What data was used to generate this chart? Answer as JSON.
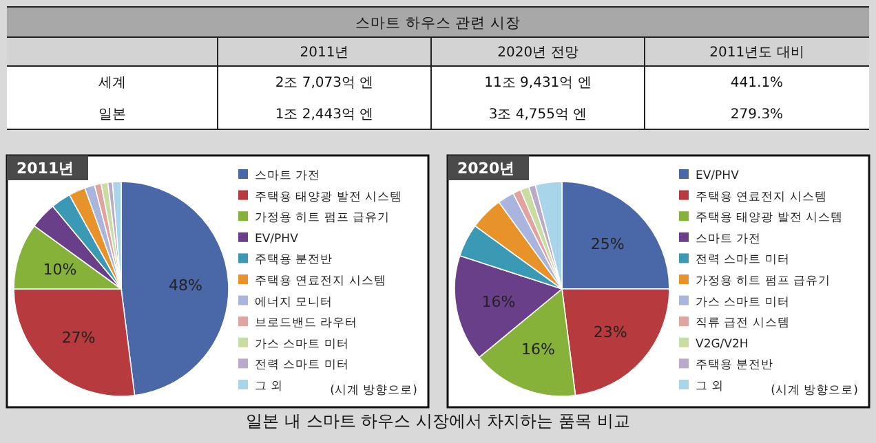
{
  "chart_data": [
    {
      "type": "other",
      "title": "스마트 하우스 관련 시장",
      "categories": [
        "2011년",
        "2020년 전망",
        "2011년도 대비"
      ],
      "y_categories": [
        "세계",
        "일본"
      ],
      "cell_labels": [
        [
          "2조 7,073억 엔",
          "11조 9,431억 엔",
          "441.1%"
        ],
        [
          "1조 2,443억 엔",
          "3조 4,755억 엔",
          "279.3%"
        ]
      ],
      "annotations": [
        "일본 내 스마트 하우스 시장에서 차지하는 품목 비교"
      ]
    },
    {
      "type": "pie",
      "title": "2011년",
      "legend": "right",
      "annotations": [
        "(시계 방향으로)"
      ],
      "categories": [
        "스마트 가전",
        "주택용 태양광 발전 시스템",
        "가정용 히트 펌프 급유기",
        "EV/PHV",
        "주택용 분전반",
        "주택용 연료전지 시스템",
        "에너지 모니터",
        "브로드밴드 라우터",
        "가스 스마트 미터",
        "전력 스마트 미터",
        "그 외"
      ],
      "values": [
        48,
        27,
        10,
        4,
        3,
        2.5,
        1.5,
        1,
        1,
        0.7,
        1.3
      ],
      "value_labels": [
        "48%",
        "27%",
        "10%",
        null,
        null,
        null,
        null,
        null,
        null,
        null,
        null
      ],
      "colors": [
        "#4a68a8",
        "#b63a3e",
        "#86b23a",
        "#683f88",
        "#3a9ab6",
        "#e8922a",
        "#a9b5dc",
        "#e2a2a0",
        "#c9dda0",
        "#b9a9cd",
        "#a9d5ea"
      ]
    },
    {
      "type": "pie",
      "title": "2020년",
      "legend": "right",
      "annotations": [
        "(시계 방향으로)"
      ],
      "categories": [
        "EV/PHV",
        "주택용 연료전지 시스템",
        "주택용 태양광 발전 시스템",
        "스마트 가전",
        "전력 스마트 미터",
        "가정용 히트 펌프 급유기",
        "가스 스마트 미터",
        "직류 급전 시스템",
        "V2G/V2H",
        "주택용 분전반",
        "그 외"
      ],
      "values": [
        25,
        23,
        16,
        16,
        5,
        5,
        2.5,
        1.2,
        1.3,
        1,
        4
      ],
      "value_labels": [
        "25%",
        "23%",
        "16%",
        "16%",
        null,
        null,
        null,
        null,
        null,
        null,
        null
      ],
      "colors": [
        "#4a68a8",
        "#b63a3e",
        "#86b23a",
        "#683f88",
        "#3a9ab6",
        "#e8922a",
        "#a9b5dc",
        "#e2a2a0",
        "#c9dda0",
        "#b9a9cd",
        "#a9d5ea"
      ]
    }
  ]
}
